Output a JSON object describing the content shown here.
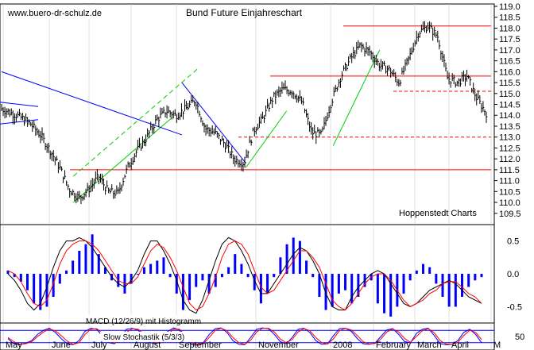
{
  "page": {
    "watermark": "www.buero-dr-schulz.de",
    "title": "Bund Future Einjahreschart",
    "source": "Hoppenstedt Charts"
  },
  "colors": {
    "price": "#000000",
    "hline": "#ff0000",
    "channel": "#00cc00",
    "trend": "#0000ff",
    "macd_hist": "#0000ff",
    "macd_signal": "#ff0000",
    "stoch_k": "#0000ff",
    "stoch_d": "#ff0000",
    "grid": "#c0c0c0"
  },
  "chart_data": [
    {
      "type": "ohlc",
      "name": "price-panel",
      "title": "Bund Future Einjahreschart",
      "x_labels": [
        "May",
        "June",
        "July",
        "August",
        "September",
        "November",
        "2008",
        "February",
        "March",
        "April",
        "M"
      ],
      "ylim": [
        109.2,
        119.0
      ],
      "y_ticks": [
        109.5,
        110.0,
        110.5,
        111.0,
        111.5,
        112.0,
        112.5,
        113.0,
        113.5,
        114.0,
        114.5,
        115.0,
        115.5,
        116.0,
        116.5,
        117.0,
        117.5,
        118.0,
        118.5,
        119.0
      ],
      "series": [
        {
          "name": "",
          "x": [
            0,
            5,
            10,
            15,
            20,
            25,
            30,
            35,
            40,
            45,
            50,
            55,
            60,
            65,
            70,
            75,
            80,
            85,
            90,
            95,
            100,
            105,
            110,
            115,
            120,
            125,
            130,
            135,
            140,
            145,
            150,
            155,
            160,
            165,
            170,
            175,
            180,
            185,
            190,
            195,
            200,
            205,
            210,
            215,
            220,
            225,
            230,
            235,
            240,
            245,
            250
          ],
          "values": [
            114.3,
            114.1,
            113.9,
            113.6,
            113.1,
            112.4,
            111.6,
            110.6,
            110.2,
            110.6,
            111.2,
            110.5,
            110.4,
            111.6,
            112.4,
            113.0,
            113.8,
            114.2,
            114.0,
            114.3,
            114.7,
            113.4,
            113.2,
            112.7,
            112.0,
            111.8,
            113.3,
            113.9,
            114.8,
            115.2,
            115.1,
            114.6,
            113.2,
            113.1,
            114.6,
            115.8,
            116.6,
            117.2,
            116.9,
            116.3,
            116.1,
            115.5,
            116.6,
            117.8,
            118.1,
            117.6,
            115.7,
            115.5,
            115.8,
            114.8,
            114.1
          ]
        }
      ],
      "horizontal_lines": [
        {
          "value": 111.5,
          "style": "solid"
        },
        {
          "value": 113.0,
          "style": "dashed"
        },
        {
          "value": 115.1,
          "style": "dashed"
        },
        {
          "value": 115.8,
          "style": "solid"
        },
        {
          "value": 118.1,
          "style": "solid"
        }
      ],
      "channels": [
        {
          "from": [
            37,
            110.0
          ],
          "to": [
            88,
            113.9
          ],
          "offset": 1.2
        },
        {
          "from": [
            126,
            111.6
          ],
          "to": [
            147,
            114.2
          ],
          "offset": 0
        },
        {
          "from": [
            171,
            112.6
          ],
          "to": [
            195,
            117.0
          ],
          "offset": 0
        }
      ],
      "trendlines": [
        {
          "from": [
            0,
            116.0
          ],
          "to": [
            93,
            113.1
          ]
        },
        {
          "from": [
            93,
            115.5
          ],
          "to": [
            126,
            111.8
          ]
        }
      ]
    },
    {
      "type": "bar",
      "name": "macd-panel",
      "label": "MACD (12/26/9) mit Histogramm",
      "ylim": [
        -0.7,
        0.7
      ],
      "y_ticks": [
        0.5,
        0.0,
        -0.5
      ],
      "histogram": [
        0.05,
        -0.05,
        -0.12,
        -0.25,
        -0.45,
        -0.55,
        -0.5,
        -0.35,
        -0.15,
        0.05,
        0.2,
        0.35,
        0.45,
        0.6,
        0.3,
        0.1,
        -0.1,
        -0.2,
        -0.3,
        -0.15,
        0.0,
        0.1,
        0.15,
        0.2,
        0.25,
        -0.05,
        -0.3,
        -0.55,
        -0.4,
        -0.2,
        -0.1,
        -0.3,
        -0.2,
        -0.05,
        0.1,
        0.3,
        0.15,
        -0.05,
        -0.25,
        -0.45,
        -0.3,
        -0.05,
        0.25,
        0.45,
        0.55,
        0.5,
        0.2,
        -0.05,
        -0.35,
        -0.55,
        -0.5,
        -0.3,
        -0.25,
        -0.45,
        -0.35,
        -0.2,
        -0.1,
        -0.45,
        -0.6,
        -0.65,
        -0.5,
        -0.3,
        -0.1,
        0.05,
        0.15,
        0.1,
        -0.15,
        -0.35,
        -0.5,
        -0.5,
        -0.35,
        -0.2,
        -0.1,
        -0.05
      ],
      "macd": [
        0.0,
        -0.1,
        -0.25,
        -0.45,
        -0.55,
        -0.45,
        -0.2,
        0.1,
        0.35,
        0.5,
        0.5,
        0.55,
        0.5,
        0.4,
        0.25,
        0.1,
        -0.05,
        -0.15,
        -0.2,
        -0.1,
        0.05,
        0.3,
        0.5,
        0.5,
        0.35,
        0.15,
        -0.1,
        -0.4,
        -0.55,
        -0.6,
        -0.4,
        -0.1,
        0.2,
        0.45,
        0.55,
        0.5,
        0.35,
        0.15,
        -0.1,
        -0.3,
        -0.3,
        -0.15,
        0.0,
        0.15,
        0.3,
        0.4,
        0.35,
        0.2,
        0.0,
        -0.3,
        -0.5,
        -0.55,
        -0.55,
        -0.35,
        -0.2,
        -0.1,
        0.0,
        0.05,
        0.0,
        -0.15,
        -0.3,
        -0.45,
        -0.5,
        -0.45,
        -0.35,
        -0.25,
        -0.2,
        -0.15,
        -0.1,
        -0.15,
        -0.25,
        -0.35,
        -0.4,
        -0.45
      ],
      "signal": [
        0.05,
        0.0,
        -0.12,
        -0.3,
        -0.45,
        -0.5,
        -0.4,
        -0.15,
        0.15,
        0.35,
        0.45,
        0.5,
        0.5,
        0.45,
        0.35,
        0.2,
        0.05,
        -0.1,
        -0.15,
        -0.15,
        -0.05,
        0.15,
        0.35,
        0.45,
        0.4,
        0.25,
        0.05,
        -0.2,
        -0.45,
        -0.55,
        -0.5,
        -0.3,
        -0.05,
        0.25,
        0.45,
        0.5,
        0.45,
        0.3,
        0.05,
        -0.2,
        -0.3,
        -0.25,
        -0.1,
        0.05,
        0.2,
        0.35,
        0.35,
        0.25,
        0.1,
        -0.15,
        -0.4,
        -0.5,
        -0.55,
        -0.45,
        -0.3,
        -0.15,
        -0.05,
        0.0,
        0.0,
        -0.1,
        -0.25,
        -0.4,
        -0.5,
        -0.45,
        -0.4,
        -0.3,
        -0.25,
        -0.15,
        -0.12,
        -0.12,
        -0.2,
        -0.3,
        -0.35,
        -0.45
      ]
    },
    {
      "type": "line",
      "name": "stochastic-panel",
      "label": "Slow Stochastik (5/3/3)",
      "ylim": [
        0,
        100
      ],
      "y_ticks": [
        50
      ],
      "levels": [
        80,
        20
      ],
      "k": [
        40,
        15,
        10,
        18,
        30,
        60,
        80,
        90,
        70,
        40,
        15,
        10,
        30,
        75,
        90,
        85,
        50,
        20,
        15,
        40,
        85,
        90,
        80,
        50,
        20,
        15,
        35,
        75,
        92,
        80,
        40,
        10,
        8,
        20,
        60,
        88,
        92,
        70,
        30,
        12,
        10,
        45,
        85,
        92,
        88,
        60,
        25,
        15,
        45,
        85,
        90,
        70,
        30,
        12,
        15,
        55,
        88,
        90,
        75,
        40,
        15,
        12,
        18,
        50,
        82,
        88,
        60,
        25,
        20,
        65,
        85,
        90,
        55,
        15,
        10,
        12,
        30,
        70,
        85,
        60,
        20
      ],
      "d": [
        45,
        25,
        12,
        15,
        25,
        50,
        72,
        86,
        78,
        55,
        28,
        12,
        20,
        60,
        85,
        88,
        65,
        32,
        18,
        30,
        70,
        88,
        85,
        62,
        32,
        18,
        28,
        62,
        86,
        85,
        55,
        22,
        10,
        15,
        45,
        80,
        90,
        78,
        45,
        20,
        12,
        32,
        72,
        90,
        90,
        72,
        38,
        20,
        35,
        72,
        88,
        78,
        45,
        20,
        14,
        40,
        78,
        90,
        82,
        55,
        25,
        14,
        16,
        38,
        72,
        86,
        72,
        40,
        22,
        50,
        78,
        88,
        68,
        30,
        14,
        12,
        22,
        55,
        80,
        70,
        35
      ]
    }
  ]
}
